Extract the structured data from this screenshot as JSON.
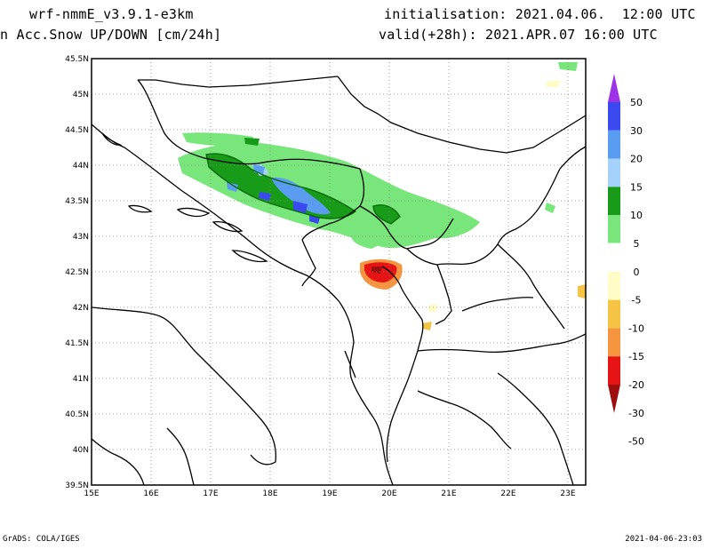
{
  "header": {
    "model": "wrf-nmmE_v3.9.1-e3km",
    "field": "n Acc.Snow UP/DOWN [cm/24h]",
    "init": "initialisation: 2021.04.06.  12:00 UTC",
    "valid": "valid(+28h): 2021.APR.07 16:00 UTC"
  },
  "footer": {
    "left": "GrADS: COLA/IGES",
    "right": "2021-04-06-23:03"
  },
  "map": {
    "lat_labels": [
      "45.5N",
      "45N",
      "44.5N",
      "44N",
      "43.5N",
      "43N",
      "42.5N",
      "42N",
      "41.5N",
      "41N",
      "40.5N",
      "40N",
      "39.5N"
    ],
    "lon_labels": [
      "15E",
      "16E",
      "17E",
      "18E",
      "19E",
      "20E",
      "21E",
      "22E",
      "23E"
    ],
    "lat_range": [
      39.5,
      45.5
    ],
    "lon_range": [
      15,
      23.3
    ]
  },
  "colorbar": {
    "labels": [
      "50",
      "30",
      "20",
      "15",
      "10",
      "5",
      "0",
      "-5",
      "-10",
      "-15",
      "-20",
      "-30",
      "-50"
    ],
    "colors": [
      "#9d32e6",
      "#3b49f0",
      "#5a9cf0",
      "#a4d2fa",
      "#179b19",
      "#78e67a",
      "#ffffff",
      "#fffcc6",
      "#f5c445",
      "#f59540",
      "#e61414",
      "#9d0f0f"
    ]
  }
}
